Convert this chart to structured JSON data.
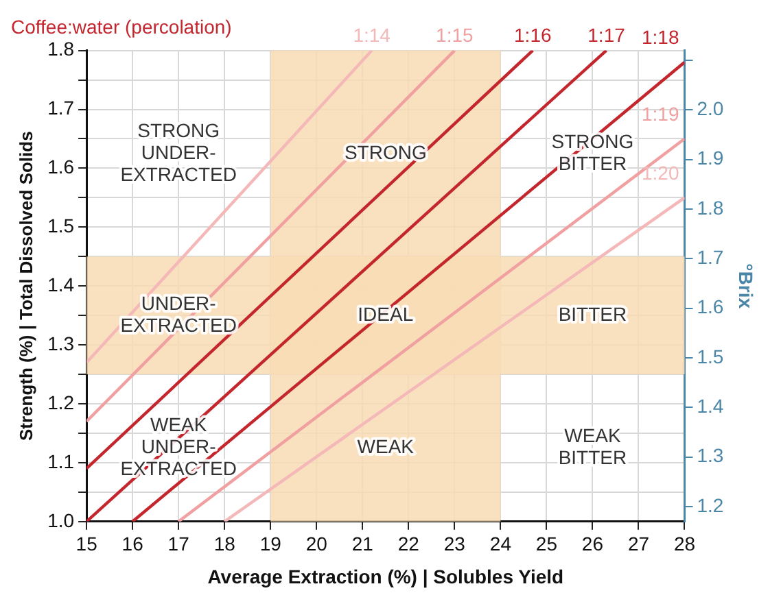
{
  "chart_data": {
    "type": "line",
    "title": "Coffee:water (percolation)",
    "xlabel": "Average Extraction (%) | Solubles Yield",
    "ylabel": "Strength (%) | Total Dissolved Solids",
    "y2label": "°Brix",
    "series": [
      {
        "name": "1:14",
        "color": "#f4b8b8",
        "x": [
          15,
          21.2
        ],
        "values": [
          1.27,
          1.8
        ]
      },
      {
        "name": "1:15",
        "color": "#f0a0a0",
        "x": [
          15,
          23
        ],
        "values": [
          1.17,
          1.8
        ]
      },
      {
        "name": "1:16",
        "color": "#c4262e",
        "x": [
          15,
          24.7
        ],
        "values": [
          1.09,
          1.8
        ]
      },
      {
        "name": "1:17",
        "color": "#c4262e",
        "x": [
          15,
          26.3
        ],
        "values": [
          1.0,
          1.8
        ]
      },
      {
        "name": "1:18",
        "color": "#c4262e",
        "x": [
          16,
          28
        ],
        "values": [
          1.0,
          1.78
        ]
      },
      {
        "name": "1:19",
        "color": "#f0a0a0",
        "x": [
          17,
          28
        ],
        "values": [
          1.0,
          1.65
        ]
      },
      {
        "name": "1:20",
        "color": "#f4b8b8",
        "x": [
          18,
          28
        ],
        "values": [
          1.0,
          1.55
        ]
      }
    ],
    "xlim": [
      15,
      28
    ],
    "xticks": [
      15,
      16,
      17,
      18,
      19,
      20,
      21,
      22,
      23,
      24,
      25,
      26,
      27,
      28
    ],
    "ylim": [
      1.0,
      1.8
    ],
    "yticks": [
      {
        "value": 1.0,
        "label": "1.0"
      },
      {
        "value": 1.05,
        "label": null
      },
      1.1,
      {
        "value": 1.15,
        "label": null
      },
      1.2,
      {
        "value": 1.25,
        "label": null
      },
      1.3,
      {
        "value": 1.35,
        "label": null
      },
      1.4,
      {
        "value": 1.45,
        "label": null
      },
      1.5,
      {
        "value": 1.55,
        "label": null
      },
      1.6,
      {
        "value": 1.65,
        "label": null
      },
      1.7,
      {
        "value": 1.75,
        "label": null
      },
      1.8
    ],
    "y2lim": [
      1.17,
      2.12
    ],
    "y2ticks": [
      1.2,
      1.3,
      1.4,
      1.5,
      1.6,
      1.7,
      1.8,
      1.9,
      {
        "value": 2.0,
        "label": "2.0"
      },
      {
        "value": 2.1,
        "label": null
      }
    ],
    "bands": [
      {
        "axis": "x",
        "from": 19,
        "to": 24,
        "color": "#f8dcb4"
      },
      {
        "axis": "y",
        "from": 1.25,
        "to": 1.45,
        "color": "#f8dcb4"
      }
    ],
    "annotations": [
      "STRONG\nUNDER-\nEXTRACTED",
      "STRONG",
      "STRONG\nBITTER",
      "UNDER-\nEXTRACTED",
      "IDEAL",
      "BITTER",
      "WEAK\nUNDER-\nEXTRACTED",
      "WEAK",
      "WEAK\nBITTER"
    ],
    "grid": true,
    "legend": false,
    "marker": "none",
    "line_style": "solid"
  }
}
